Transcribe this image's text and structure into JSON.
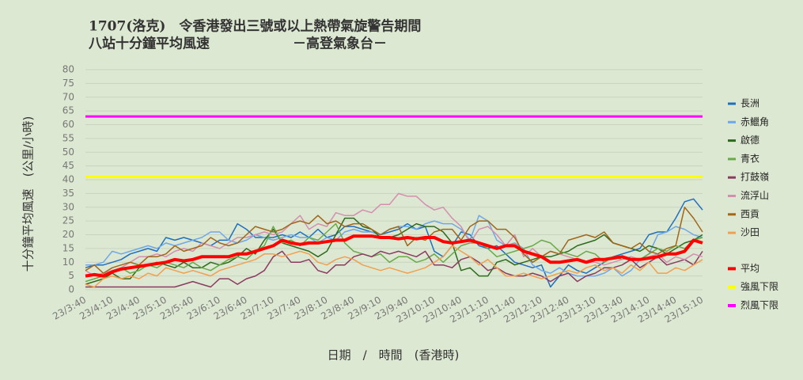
{
  "chart_data": {
    "type": "line",
    "title": "1707(洛克)　令香港發出三號或以上熱帶氣旋警告期間",
    "subtitle": "八站十分鐘平均風速",
    "credit": "－高登氣象台－",
    "x_label": "日期　/　時間　(香港時)",
    "y_label": "十分鐘平均風速　(公里/小時)",
    "categories": [
      "23/3:40",
      null,
      null,
      "23/4:10",
      null,
      null,
      "23/4:40",
      null,
      null,
      "23/5:10",
      null,
      null,
      "23/5:40",
      null,
      null,
      "23/6:10",
      null,
      null,
      "23/6:40",
      null,
      null,
      "23/7:10",
      null,
      null,
      "23/7:40",
      null,
      null,
      "23/8:10",
      null,
      null,
      "23/8:40",
      null,
      null,
      "23/9:10",
      null,
      null,
      "23/9:40",
      null,
      null,
      "23/10:10",
      null,
      null,
      "23/10:40",
      null,
      null,
      "23/11:10",
      null,
      null,
      "23/11:40",
      null,
      null,
      "23/12:10",
      null,
      null,
      "23/12:40",
      null,
      null,
      "23/13:10",
      null,
      null,
      "23/13:40",
      null,
      null,
      "23/14:10",
      null,
      null,
      "23/14:40",
      null,
      null,
      "23/15:10"
    ],
    "ylim": [
      0,
      80
    ],
    "yticks": [
      0,
      5,
      10,
      15,
      20,
      25,
      30,
      35,
      40,
      45,
      50,
      55,
      60,
      65,
      70,
      75,
      80
    ],
    "grid": true,
    "legend": "right",
    "series": [
      {
        "name": "長洲",
        "color": "#1f6fbf",
        "values": [
          8,
          9,
          9,
          10,
          11,
          13,
          14,
          15,
          14,
          19,
          18,
          19,
          18,
          17,
          16,
          18,
          18,
          24,
          22,
          19,
          19,
          19,
          20,
          19,
          21,
          19,
          22,
          19,
          20,
          23,
          23,
          22,
          21,
          20,
          21,
          22,
          24,
          22,
          23,
          14,
          12,
          16,
          21,
          20,
          16,
          15,
          16,
          13,
          10,
          9,
          8,
          9,
          1,
          5,
          9,
          7,
          6,
          8,
          10,
          12,
          13,
          14,
          15,
          20,
          21,
          21,
          26,
          32,
          33,
          29
        ]
      },
      {
        "name": "赤鱲角",
        "color": "#6fa8e8",
        "values": [
          9,
          9,
          10,
          14,
          13,
          14,
          15,
          16,
          15,
          17,
          16,
          17,
          18,
          19,
          21,
          21,
          18,
          17,
          18,
          20,
          19,
          18,
          19,
          20,
          19,
          19,
          17,
          19,
          18,
          21,
          22,
          21,
          21,
          20,
          22,
          23,
          23,
          22,
          24,
          25,
          24,
          24,
          22,
          18,
          27,
          25,
          18,
          16,
          17,
          15,
          9,
          7,
          6,
          8,
          6,
          5,
          5,
          5,
          6,
          8,
          5,
          7,
          11,
          13,
          20,
          21,
          23,
          22,
          20,
          19
        ]
      },
      {
        "name": "啟德",
        "color": "#2e6b1e",
        "values": [
          2,
          3,
          4,
          6,
          4,
          4,
          8,
          9,
          10,
          9,
          8,
          10,
          8,
          8,
          10,
          9,
          10,
          12,
          15,
          13,
          18,
          22,
          17,
          16,
          15,
          14,
          12,
          14,
          20,
          26,
          26,
          23,
          22,
          19,
          19,
          20,
          22,
          24,
          23,
          23,
          21,
          17,
          7,
          8,
          5,
          5,
          10,
          11,
          9,
          10,
          11,
          12,
          12,
          13,
          14,
          16,
          17,
          18,
          20,
          17,
          16,
          15,
          14,
          16,
          15,
          13,
          15,
          17,
          18,
          20
        ]
      },
      {
        "name": "青衣",
        "color": "#6aaa4a",
        "values": [
          3,
          4,
          5,
          7,
          8,
          6,
          7,
          9,
          8,
          10,
          9,
          8,
          10,
          8,
          7,
          9,
          11,
          12,
          11,
          14,
          16,
          23,
          17,
          18,
          16,
          19,
          18,
          21,
          24,
          17,
          14,
          13,
          12,
          13,
          10,
          12,
          12,
          10,
          11,
          13,
          10,
          13,
          16,
          17,
          17,
          15,
          12,
          13,
          14,
          15,
          16,
          18,
          17,
          14,
          13,
          12,
          14,
          13,
          10,
          12,
          11,
          12,
          11,
          13,
          15,
          14,
          16,
          15,
          18,
          19
        ]
      },
      {
        "name": "打鼓嶺",
        "color": "#8b3a62",
        "values": [
          1,
          1,
          1,
          1,
          1,
          1,
          1,
          1,
          1,
          1,
          1,
          2,
          3,
          2,
          1,
          4,
          4,
          2,
          4,
          5,
          7,
          12,
          14,
          10,
          10,
          11,
          7,
          6,
          9,
          9,
          12,
          13,
          12,
          14,
          13,
          14,
          13,
          12,
          14,
          9,
          9,
          8,
          11,
          12,
          10,
          7,
          8,
          6,
          5,
          5,
          6,
          5,
          3,
          5,
          6,
          3,
          5,
          6,
          8,
          8,
          9,
          11,
          8,
          10,
          12,
          9,
          10,
          11,
          9,
          14
        ]
      },
      {
        "name": "流浮山",
        "color": "#d48fb0",
        "values": [
          7,
          5,
          6,
          7,
          8,
          10,
          12,
          12,
          13,
          12,
          14,
          15,
          14,
          17,
          16,
          15,
          17,
          19,
          19,
          20,
          21,
          20,
          21,
          24,
          27,
          22,
          24,
          23,
          28,
          27,
          27,
          29,
          28,
          31,
          31,
          35,
          34,
          34,
          31,
          29,
          30,
          26,
          23,
          17,
          22,
          23,
          20,
          16,
          20,
          12,
          15,
          12,
          14,
          13,
          12,
          11,
          10,
          10,
          9,
          10,
          11,
          12,
          11,
          12,
          13,
          10,
          12,
          11,
          13,
          12
        ]
      },
      {
        "name": "西貢",
        "color": "#a0661a",
        "values": [
          7,
          9,
          6,
          8,
          9,
          10,
          9,
          12,
          12,
          13,
          16,
          14,
          15,
          16,
          19,
          17,
          16,
          17,
          20,
          23,
          22,
          21,
          22,
          24,
          25,
          24,
          27,
          24,
          25,
          23,
          24,
          24,
          22,
          20,
          22,
          23,
          16,
          19,
          18,
          21,
          22,
          22,
          18,
          23,
          25,
          25,
          22,
          22,
          19,
          13,
          10,
          12,
          14,
          13,
          18,
          19,
          20,
          19,
          21,
          17,
          16,
          15,
          17,
          14,
          13,
          15,
          16,
          30,
          26,
          21
        ]
      },
      {
        "name": "沙田",
        "color": "#f0a050",
        "values": [
          2,
          1,
          4,
          5,
          4,
          5,
          4,
          6,
          5,
          8,
          7,
          6,
          7,
          6,
          5,
          7,
          8,
          9,
          10,
          11,
          13,
          13,
          12,
          13,
          14,
          13,
          10,
          9,
          11,
          12,
          11,
          9,
          8,
          7,
          8,
          7,
          6,
          7,
          8,
          10,
          12,
          16,
          14,
          12,
          9,
          11,
          8,
          5,
          5,
          6,
          5,
          4,
          5,
          6,
          7,
          6,
          8,
          9,
          7,
          8,
          6,
          9,
          7,
          10,
          6,
          6,
          8,
          7,
          9,
          11
        ]
      },
      {
        "name": "平均",
        "color": "#ff0000",
        "width": 4,
        "values": [
          5,
          5.5,
          5,
          6.5,
          7.5,
          8,
          8.5,
          9,
          9.5,
          10,
          11,
          10.5,
          11,
          12,
          12,
          12,
          12,
          13,
          13,
          14,
          15,
          16,
          18,
          17,
          16.5,
          17,
          17,
          17.5,
          18,
          18,
          19.5,
          19.5,
          19.5,
          19,
          19,
          18.5,
          19,
          18.5,
          19,
          19,
          17.5,
          17,
          17.5,
          18,
          17,
          16,
          15,
          16,
          16,
          14,
          13,
          12,
          10,
          10,
          10.5,
          11,
          10,
          11,
          11,
          11.5,
          12,
          11,
          11,
          11.5,
          12,
          13,
          13,
          14,
          18,
          17
        ]
      }
    ],
    "reference_lines": [
      {
        "name": "強風下限",
        "color": "#ffff00",
        "value": 41
      },
      {
        "name": "烈風下限",
        "color": "#ff00ff",
        "value": 63
      }
    ]
  }
}
